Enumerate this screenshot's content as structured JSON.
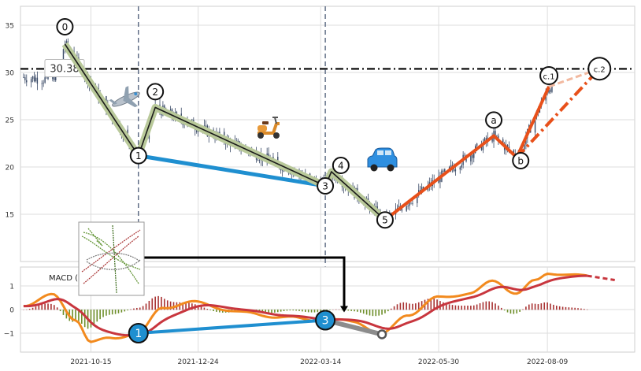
{
  "chart_data": [
    {
      "type": "candlestick",
      "title": "",
      "ylim": [
        10,
        37
      ],
      "yticks": [
        15,
        20,
        25,
        30,
        35
      ],
      "price_level": {
        "value": 30.38,
        "label": "30.38"
      },
      "wave_points": [
        {
          "label": "0",
          "date": "2021-09-28",
          "price": 33.0
        },
        {
          "label": "1",
          "date": "2021-11-15",
          "price": 21.2
        },
        {
          "label": "2",
          "date": "2021-11-26",
          "price": 26.3
        },
        {
          "label": "3",
          "date": "2022-03-17",
          "price": 18.0
        },
        {
          "label": "4",
          "date": "2022-03-21",
          "price": 19.5
        },
        {
          "label": "5",
          "date": "2022-04-25",
          "price": 14.4
        },
        {
          "label": "a",
          "date": "2022-07-05",
          "price": 23.3
        },
        {
          "label": "b",
          "date": "2022-07-20",
          "price": 21.0
        },
        {
          "label": "c.1",
          "date": "2022-08-10",
          "price": 28.5
        },
        {
          "label": "c.2",
          "date": "2022-09-12",
          "price": 30.4
        }
      ],
      "channel_line": {
        "from": "1",
        "to": "3"
      },
      "projection": {
        "from": "b",
        "to": "c.2"
      },
      "vertical_markers": [
        "2021-11-15",
        "2022-03-17"
      ],
      "icons": [
        "airplane-icon",
        "scooter-icon",
        "car-icon",
        "thumbnail-chart-icon"
      ],
      "colors": {
        "candle": "#3a4a66",
        "wave": "#1a1a1a",
        "wave_glow": "#b9c99a",
        "channel": "#1f8fd0",
        "correction": "#e8501a",
        "projection_light": "#f2b9a0"
      }
    },
    {
      "type": "macd",
      "label": "MACD (12,26,9)",
      "ylim": [
        -1.8,
        1.8
      ],
      "yticks": [
        -1,
        0,
        1
      ],
      "yticklabels": [
        "−1",
        "0",
        "1"
      ],
      "divergence_points": [
        {
          "label": "1",
          "date": "2021-11-15",
          "value": -1.0
        },
        {
          "label": "3",
          "date": "2022-03-17",
          "value": -0.45
        }
      ],
      "gray_segment": {
        "from_date": "2022-03-17",
        "from_value": -0.45,
        "to_date": "2022-04-23",
        "to_value": -1.05
      },
      "colors": {
        "macd": "#f28a1e",
        "signal": "#c8363e",
        "hist_pos": "#a83232",
        "hist_neg": "#6e8f2a",
        "divergence": "#1f8fd0",
        "gray": "#8c8c8c"
      }
    }
  ],
  "x_axis": {
    "start": "2021-08-30",
    "end": "2022-10-05",
    "ticks": [
      "2021-10-15",
      "2021-12-24",
      "2022-03-14",
      "2022-05-30",
      "2022-08-09"
    ]
  }
}
